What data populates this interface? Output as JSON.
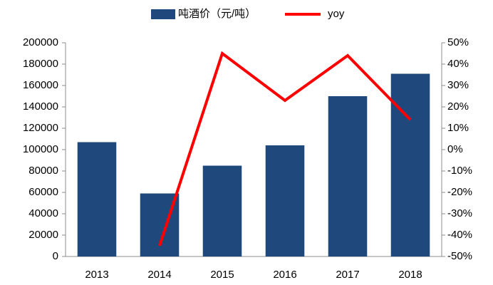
{
  "chart_data": {
    "type": "bar",
    "categories": [
      "2013",
      "2014",
      "2015",
      "2016",
      "2017",
      "2018"
    ],
    "series": [
      {
        "name": "吨酒价（元/吨）",
        "type": "bar",
        "color": "#1f497d",
        "values": [
          107000,
          59000,
          85000,
          104000,
          150000,
          171000
        ]
      },
      {
        "name": "yoy",
        "type": "line",
        "axis": "y2",
        "color": "#ff0000",
        "values": [
          null,
          -45,
          45,
          23,
          44,
          14
        ]
      }
    ],
    "ylim": [
      0,
      200000
    ],
    "yticks": [
      0,
      20000,
      40000,
      60000,
      80000,
      100000,
      120000,
      140000,
      160000,
      180000,
      200000
    ],
    "y2lim": [
      -50,
      50
    ],
    "y2ticks": [
      {
        "value": -50,
        "label": "-50%"
      },
      {
        "value": -40,
        "label": "-40%"
      },
      {
        "value": -30,
        "label": "-30%"
      },
      {
        "value": -20,
        "label": "-20%"
      },
      {
        "value": -10,
        "label": "-10%"
      },
      {
        "value": 0,
        "label": "0%"
      },
      {
        "value": 10,
        "label": "10%"
      },
      {
        "value": 20,
        "label": "20%"
      },
      {
        "value": 30,
        "label": "30%"
      },
      {
        "value": 40,
        "label": "40%"
      },
      {
        "value": 50,
        "label": "50%"
      }
    ],
    "legend": "top"
  }
}
